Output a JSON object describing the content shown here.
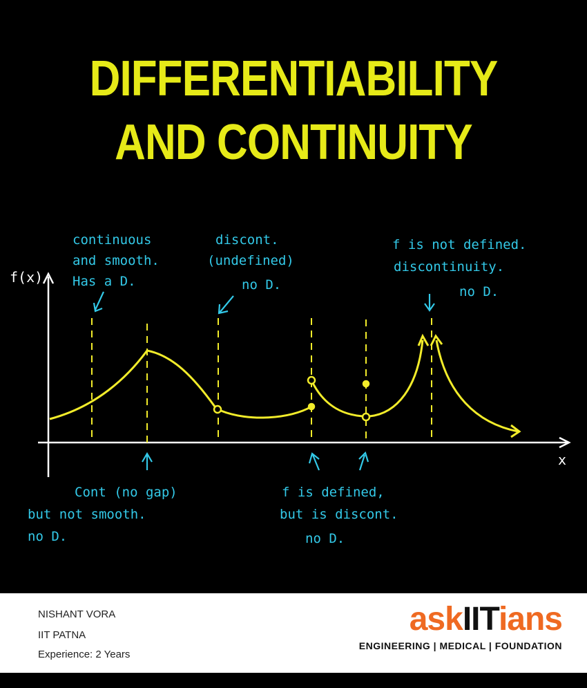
{
  "title": {
    "line1": "DIFFERENTIABILITY",
    "line2": "AND CONTINUITY"
  },
  "axes": {
    "y_label": "f(x)",
    "x_label": "x"
  },
  "annotations": {
    "top": [
      {
        "lines": [
          "continuous",
          "and smooth.",
          "Has a D."
        ]
      },
      {
        "lines": [
          "discont.",
          "(undefined)",
          "no D."
        ]
      },
      {
        "lines": [
          "f is not defined.",
          "discontinuity.",
          "no D."
        ]
      }
    ],
    "bottom": [
      {
        "lines": [
          "Cont (no gap)",
          "but not smooth.",
          "no D."
        ]
      },
      {
        "lines": [
          "f is defined,",
          "but is discont.",
          "no D."
        ]
      }
    ]
  },
  "footer": {
    "author_name": "NISHANT VORA",
    "institute": "IIT PATNA",
    "experience": "Experience: 2 Years",
    "logo_ask": "ask",
    "logo_iit": "IIT",
    "logo_ians": "ians",
    "logo_tagline": "ENGINEERING | MEDICAL | FOUNDATION"
  },
  "colors": {
    "title": "#e6ea18",
    "curve": "#f2ec2a",
    "annotation": "#33c9e8",
    "brand": "#ef6a22"
  }
}
